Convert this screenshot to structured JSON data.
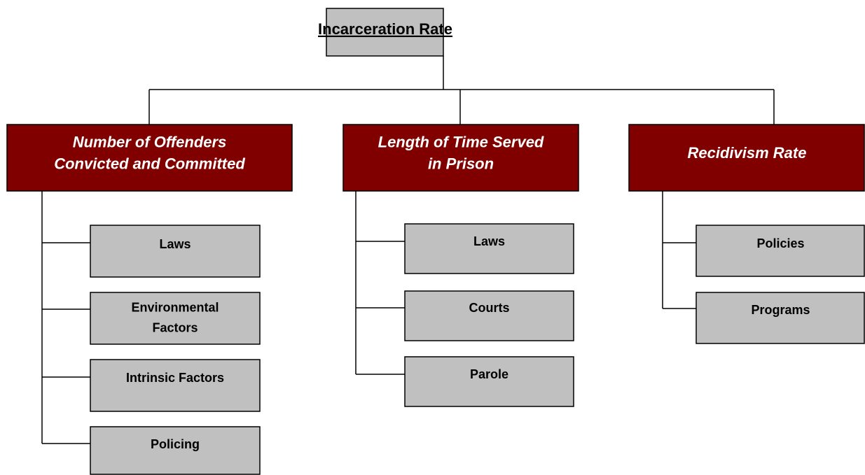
{
  "root": {
    "label": "Incarceration Rate"
  },
  "branches": [
    {
      "label": [
        "Number of Offenders",
        "Convicted and Committed"
      ],
      "children": [
        [
          "Laws"
        ],
        [
          "Environmental",
          "Factors"
        ],
        [
          "Intrinsic Factors"
        ],
        [
          "Policing"
        ]
      ]
    },
    {
      "label": [
        "Length of Time Served",
        "in Prison"
      ],
      "children": [
        [
          "Laws"
        ],
        [
          "Courts"
        ],
        [
          "Parole"
        ]
      ]
    },
    {
      "label": [
        "Recidivism Rate"
      ],
      "children": [
        [
          "Policies"
        ],
        [
          "Programs"
        ]
      ]
    }
  ]
}
